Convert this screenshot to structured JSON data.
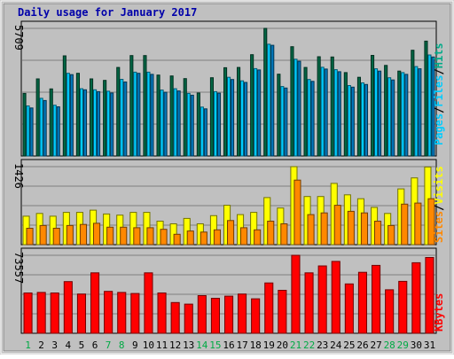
{
  "chart_data": {
    "title": "Daily usage for January 2017",
    "type": "bar",
    "categories": [
      "1",
      "2",
      "3",
      "4",
      "5",
      "6",
      "7",
      "8",
      "9",
      "10",
      "11",
      "12",
      "13",
      "14",
      "15",
      "16",
      "17",
      "18",
      "19",
      "20",
      "21",
      "22",
      "23",
      "24",
      "25",
      "26",
      "27",
      "28",
      "29",
      "30",
      "31"
    ],
    "weekend_days": [
      "1",
      "7",
      "8",
      "14",
      "15",
      "21",
      "22",
      "28",
      "29"
    ],
    "panels": [
      {
        "id": "pages-files-hits",
        "ymax_label": "5709",
        "ymax": 5709,
        "series_labels": [
          "Pages",
          "Files",
          "Hits"
        ],
        "series": [
          {
            "name": "Hits",
            "color": "#006644",
            "values": [
              2800,
              3450,
              3000,
              4480,
              3700,
              3450,
              3380,
              3960,
              4490,
              4490,
              3620,
              3580,
              3460,
              2820,
              3500,
              3950,
              3960,
              4530,
              5709,
              3660,
              4890,
              3960,
              4440,
              4430,
              3730,
              3520,
              4500,
              4050,
              3800,
              4730,
              5140
            ]
          },
          {
            "name": "Files",
            "color": "#00ccff",
            "values": [
              2240,
              2580,
              2270,
              3700,
              3010,
              2960,
              2900,
              3430,
              3750,
              3750,
              2950,
              3010,
              2800,
              2190,
              2880,
              3520,
              3360,
              3910,
              5000,
              3110,
              4330,
              3420,
              3970,
              3860,
              3150,
              3270,
              3900,
              3500,
              3730,
              4000,
              4520
            ]
          },
          {
            "name": "Pages",
            "color": "#0077bb",
            "values": [
              2150,
              2480,
              2200,
              3640,
              2960,
              2880,
              2820,
              3310,
              3700,
              3650,
              2850,
              2910,
              2720,
              2110,
              2810,
              3420,
              3290,
              3850,
              4950,
              3040,
              4240,
              3340,
              3890,
              3770,
              3080,
              3200,
              3800,
              3400,
              3650,
              3900,
              4430
            ]
          }
        ]
      },
      {
        "id": "sites-visits",
        "ymax_label": "1426",
        "ymax": 1426,
        "series_labels": [
          "Sites",
          "Visits"
        ],
        "series": [
          {
            "name": "Visits",
            "color": "#ffff00",
            "values": [
              520,
              570,
              520,
              590,
              590,
              630,
              560,
              540,
              590,
              590,
              430,
              380,
              480,
              380,
              530,
              720,
              550,
              590,
              860,
              670,
              1426,
              880,
              880,
              1120,
              910,
              840,
              680,
              570,
              1020,
              1220,
              1420
            ]
          },
          {
            "name": "Sites",
            "color": "#ff8800",
            "values": [
              300,
              350,
              300,
              350,
              370,
              390,
              320,
              320,
              310,
              310,
              280,
              190,
              250,
              230,
              270,
              440,
              310,
              270,
              430,
              380,
              1180,
              550,
              580,
              720,
              610,
              580,
              430,
              350,
              740,
              760,
              840
            ]
          }
        ]
      },
      {
        "id": "kbytes",
        "ymax_label": "73557",
        "ymax": 73557,
        "series_labels": [
          "KBytes"
        ],
        "series": [
          {
            "name": "KBytes",
            "color": "#ff0000",
            "values": [
              38000,
              38500,
              38000,
              48700,
              37000,
              57000,
              39500,
              38500,
              37500,
              57000,
              38000,
              29000,
              27500,
              35500,
              33000,
              35000,
              37000,
              32500,
              47500,
              40500,
              73557,
              57000,
              63500,
              67800,
              46600,
              57500,
              64000,
              41000,
              49000,
              66500,
              71500
            ]
          }
        ]
      }
    ]
  }
}
